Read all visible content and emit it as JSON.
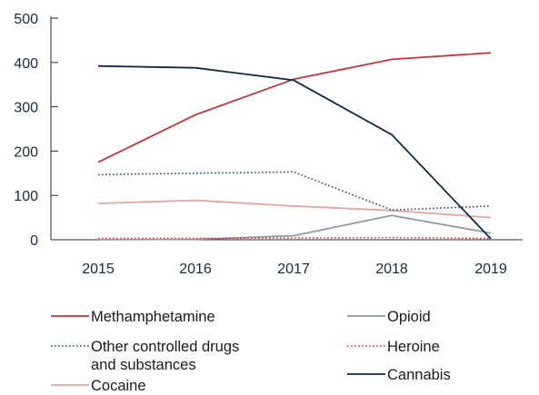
{
  "chart_data": {
    "type": "line",
    "x": [
      2015,
      2016,
      2017,
      2018,
      2019
    ],
    "categories": [
      "2015",
      "2016",
      "2017",
      "2018",
      "2019"
    ],
    "ylim": [
      0,
      500
    ],
    "yticks": [
      "0",
      "100",
      "200",
      "300",
      "400",
      "500"
    ],
    "grid": false,
    "legend_position": "bottom",
    "series": [
      {
        "name": "Methamphetamine",
        "values": [
          175,
          282,
          362,
          407,
          422
        ],
        "color": "#c8333a",
        "style": "solid"
      },
      {
        "name": "Other controlled drugs and substances",
        "name_lines": [
          "Other controlled drugs",
          "and substances"
        ],
        "values": [
          147,
          150,
          153,
          67,
          76
        ],
        "color": "#2e4a6b",
        "style": "dotted"
      },
      {
        "name": "Cocaine",
        "values": [
          82,
          89,
          76,
          66,
          50
        ],
        "color": "#e8a2a3",
        "style": "solid"
      },
      {
        "name": "Opioid",
        "values": [
          0,
          1,
          9,
          55,
          15
        ],
        "color": "#8e9aa6",
        "style": "solid"
      },
      {
        "name": "Heroine",
        "values": [
          3,
          3,
          4,
          5,
          3
        ],
        "color": "#d2424a",
        "style": "dotted"
      },
      {
        "name": "Cannabis",
        "values": [
          392,
          388,
          360,
          237,
          2
        ],
        "color": "#0f2a44",
        "style": "solid"
      }
    ]
  }
}
